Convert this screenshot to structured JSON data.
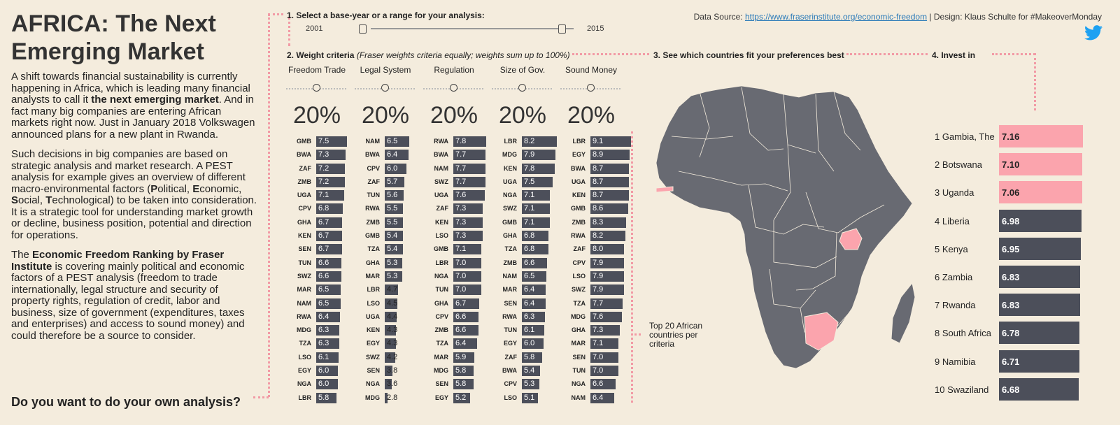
{
  "left": {
    "title": "AFRICA: The Next Emerging Market",
    "para1_a": "A shift towards financial sustainability is currently happening in Africa, which is leading many financial analysts to call it ",
    "para1_b": "the next emerging market",
    "para1_c": ". And in fact many big companies are entering African markets right now. Just in January 2018 Volkswagen announced plans for a new plant in Rwanda.",
    "para2_a": "Such decisions in big companies are based on strategic analysis and market research. A PEST analysis for example gives an overview of different macro-environmental factors (",
    "para2_p": "P",
    "para2_p_rest": "olitical, ",
    "para2_e": "E",
    "para2_e_rest": "conomic, ",
    "para2_s": "S",
    "para2_s_rest": "ocial, ",
    "para2_t": "T",
    "para2_t_rest": "echnological) to be taken into consideration. It is a strategic tool for understanding market growth or decline, business position, potential and direction for operations.",
    "para3_a": "The ",
    "para3_b": "Economic Freedom Ranking by Fraser Institute",
    "para3_c": " is covering mainly political and economic factors of a PEST analysis (freedom to trade internationally, legal structure and security of property rights, regulation of credit, labor and business, size of government (expenditures, taxes and enterprises) and access to sound money) and could therefore be a source to consider.",
    "cta": "Do you want to do your own analysis?"
  },
  "step1": {
    "label": "1. Select a base-year or a range for your analysis:",
    "year_from": "2001",
    "year_to": "2015"
  },
  "step2": {
    "label": "2. Weight criteria",
    "note": "(Fraser weights criteria equally; weights sum up to 100%)"
  },
  "step3": {
    "label": "3. See which countries fit your preferences best"
  },
  "step4": {
    "label": "4. Invest in"
  },
  "source": {
    "prefix": "Data Source: ",
    "link": "https://www.fraserinstitute.org/economic-freedom",
    "suffix": " | Design: Klaus Schulte for #MakeoverMonday"
  },
  "icons": {
    "twitter": "twitter-icon"
  },
  "colors": {
    "accent": "#f29aa5",
    "bar": "#4c4f5a",
    "highlight": "#fba4ad",
    "background": "#f4ecdd"
  },
  "criteria": [
    {
      "name": "Freedom Trade",
      "weight": "20%",
      "rows": [
        [
          "GMB",
          "7.5"
        ],
        [
          "BWA",
          "7.3"
        ],
        [
          "ZAF",
          "7.2"
        ],
        [
          "ZMB",
          "7.2"
        ],
        [
          "UGA",
          "7.1"
        ],
        [
          "CPV",
          "6.8"
        ],
        [
          "GHA",
          "6.7"
        ],
        [
          "KEN",
          "6.7"
        ],
        [
          "SEN",
          "6.7"
        ],
        [
          "TUN",
          "6.6"
        ],
        [
          "SWZ",
          "6.6"
        ],
        [
          "MAR",
          "6.5"
        ],
        [
          "NAM",
          "6.5"
        ],
        [
          "RWA",
          "6.4"
        ],
        [
          "MDG",
          "6.3"
        ],
        [
          "TZA",
          "6.3"
        ],
        [
          "LSO",
          "6.1"
        ],
        [
          "EGY",
          "6.0"
        ],
        [
          "NGA",
          "6.0"
        ],
        [
          "LBR",
          "5.8"
        ]
      ]
    },
    {
      "name": "Legal System",
      "weight": "20%",
      "rows": [
        [
          "NAM",
          "6.5"
        ],
        [
          "BWA",
          "6.4"
        ],
        [
          "CPV",
          "6.0"
        ],
        [
          "ZAF",
          "5.7"
        ],
        [
          "TUN",
          "5.6"
        ],
        [
          "RWA",
          "5.5"
        ],
        [
          "ZMB",
          "5.5"
        ],
        [
          "GMB",
          "5.4"
        ],
        [
          "TZA",
          "5.4"
        ],
        [
          "GHA",
          "5.3"
        ],
        [
          "MAR",
          "5.3"
        ],
        [
          "LBR",
          "4.7"
        ],
        [
          "LSO",
          "4.5"
        ],
        [
          "UGA",
          "4.4"
        ],
        [
          "KEN",
          "4.3"
        ],
        [
          "EGY",
          "4.3"
        ],
        [
          "SWZ",
          "4.2"
        ],
        [
          "SEN",
          "3.8"
        ],
        [
          "NGA",
          "3.6"
        ],
        [
          "MDG",
          "2.8"
        ]
      ]
    },
    {
      "name": "Regulation",
      "weight": "20%",
      "rows": [
        [
          "RWA",
          "7.8"
        ],
        [
          "BWA",
          "7.7"
        ],
        [
          "NAM",
          "7.7"
        ],
        [
          "SWZ",
          "7.7"
        ],
        [
          "UGA",
          "7.6"
        ],
        [
          "ZAF",
          "7.3"
        ],
        [
          "KEN",
          "7.3"
        ],
        [
          "LSO",
          "7.3"
        ],
        [
          "GMB",
          "7.1"
        ],
        [
          "LBR",
          "7.0"
        ],
        [
          "NGA",
          "7.0"
        ],
        [
          "TUN",
          "7.0"
        ],
        [
          "GHA",
          "6.7"
        ],
        [
          "CPV",
          "6.6"
        ],
        [
          "ZMB",
          "6.6"
        ],
        [
          "TZA",
          "6.4"
        ],
        [
          "MAR",
          "5.9"
        ],
        [
          "MDG",
          "5.8"
        ],
        [
          "SEN",
          "5.8"
        ],
        [
          "EGY",
          "5.2"
        ]
      ]
    },
    {
      "name": "Size of Gov.",
      "weight": "20%",
      "rows": [
        [
          "LBR",
          "8.2"
        ],
        [
          "MDG",
          "7.9"
        ],
        [
          "KEN",
          "7.8"
        ],
        [
          "UGA",
          "7.5"
        ],
        [
          "NGA",
          "7.1"
        ],
        [
          "SWZ",
          "7.1"
        ],
        [
          "GMB",
          "7.1"
        ],
        [
          "GHA",
          "6.8"
        ],
        [
          "TZA",
          "6.8"
        ],
        [
          "ZMB",
          "6.6"
        ],
        [
          "NAM",
          "6.5"
        ],
        [
          "MAR",
          "6.4"
        ],
        [
          "SEN",
          "6.4"
        ],
        [
          "RWA",
          "6.3"
        ],
        [
          "TUN",
          "6.1"
        ],
        [
          "EGY",
          "6.0"
        ],
        [
          "ZAF",
          "5.8"
        ],
        [
          "BWA",
          "5.4"
        ],
        [
          "CPV",
          "5.3"
        ],
        [
          "LSO",
          "5.1"
        ]
      ]
    },
    {
      "name": "Sound Money",
      "weight": "20%",
      "rows": [
        [
          "LBR",
          "9.1"
        ],
        [
          "EGY",
          "8.9"
        ],
        [
          "BWA",
          "8.7"
        ],
        [
          "UGA",
          "8.7"
        ],
        [
          "KEN",
          "8.7"
        ],
        [
          "GMB",
          "8.6"
        ],
        [
          "ZMB",
          "8.3"
        ],
        [
          "RWA",
          "8.2"
        ],
        [
          "ZAF",
          "8.0"
        ],
        [
          "CPV",
          "7.9"
        ],
        [
          "LSO",
          "7.9"
        ],
        [
          "SWZ",
          "7.9"
        ],
        [
          "TZA",
          "7.7"
        ],
        [
          "MDG",
          "7.6"
        ],
        [
          "GHA",
          "7.3"
        ],
        [
          "MAR",
          "7.1"
        ],
        [
          "SEN",
          "7.0"
        ],
        [
          "TUN",
          "7.0"
        ],
        [
          "NGA",
          "6.6"
        ],
        [
          "NAM",
          "6.4"
        ]
      ]
    }
  ],
  "map_note": "Top 20 African countries per criteria",
  "ranking": [
    {
      "label": "1 Gambia, The",
      "value": "7.16",
      "highlight": true
    },
    {
      "label": "2 Botswana",
      "value": "7.10",
      "highlight": true
    },
    {
      "label": "3 Uganda",
      "value": "7.06",
      "highlight": true
    },
    {
      "label": "4 Liberia",
      "value": "6.98",
      "highlight": false
    },
    {
      "label": "5 Kenya",
      "value": "6.95",
      "highlight": false
    },
    {
      "label": "6 Zambia",
      "value": "6.83",
      "highlight": false
    },
    {
      "label": "7 Rwanda",
      "value": "6.83",
      "highlight": false
    },
    {
      "label": "8 South Africa",
      "value": "6.78",
      "highlight": false
    },
    {
      "label": "9 Namibia",
      "value": "6.71",
      "highlight": false
    },
    {
      "label": "10 Swaziland",
      "value": "6.68",
      "highlight": false
    }
  ]
}
